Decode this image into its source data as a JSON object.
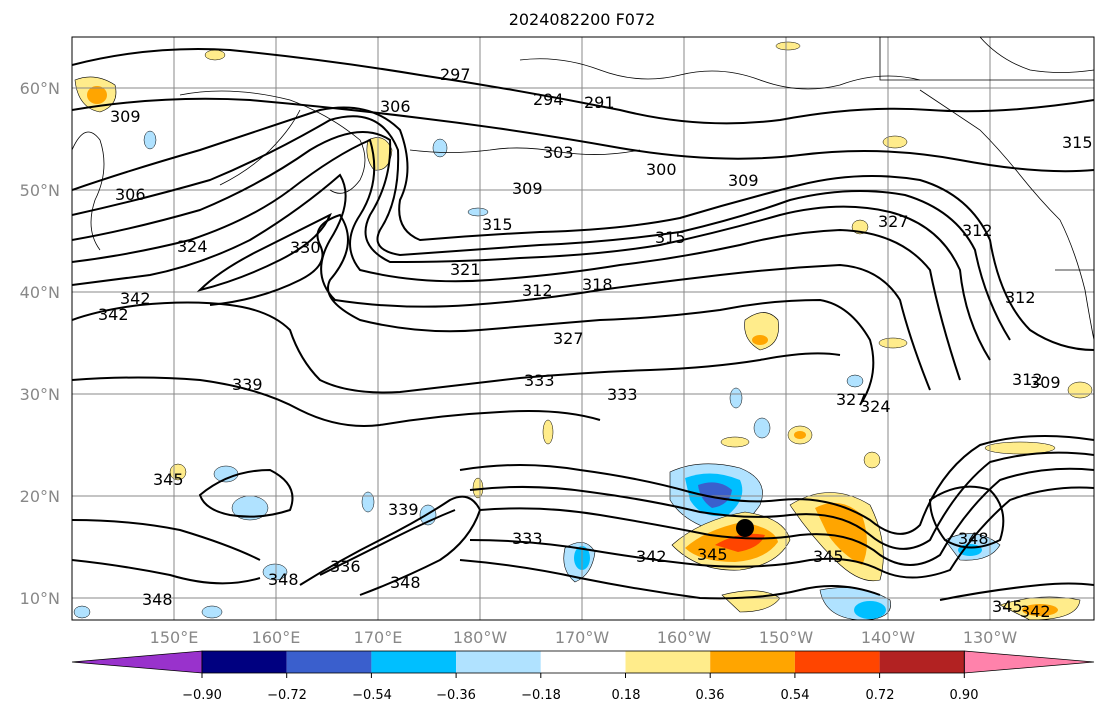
{
  "title": "2024082200 F072",
  "map": {
    "lat_labels": [
      "60°N",
      "50°N",
      "40°N",
      "30°N",
      "20°N",
      "10°N"
    ],
    "lon_labels": [
      "150°E",
      "160°E",
      "170°E",
      "180°W",
      "170°W",
      "160°W",
      "150°W",
      "140°W",
      "130°W"
    ],
    "contour_labels": [
      "297",
      "294",
      "291",
      "306",
      "303",
      "300",
      "309",
      "309",
      "306",
      "315",
      "327",
      "315",
      "324",
      "330",
      "321",
      "312",
      "318",
      "312",
      "327",
      "342",
      "342",
      "309",
      "339",
      "333",
      "333",
      "327",
      "324",
      "312",
      "309",
      "345",
      "339",
      "333",
      "336",
      "348",
      "348",
      "342",
      "345",
      "345",
      "348",
      "348",
      "345",
      "342",
      "315",
      "312"
    ]
  },
  "colorbar": {
    "colors": [
      "#9932cc",
      "#000080",
      "#3a5fcd",
      "#00bfff",
      "#b0e2ff",
      "#ffffff",
      "#ffec8b",
      "#ffa500",
      "#ff4500",
      "#b22222",
      "#ff82ab"
    ],
    "tick_labels": [
      "−0.90",
      "−0.72",
      "−0.54",
      "−0.36",
      "−0.18",
      "0.18",
      "0.36",
      "0.54",
      "0.72",
      "0.90"
    ]
  }
}
